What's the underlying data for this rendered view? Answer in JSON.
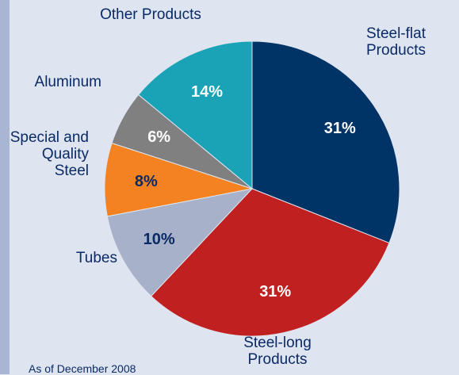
{
  "chart_data": {
    "type": "pie",
    "categories": [
      "Steel-flat Products",
      "Steel-long Products",
      "Tubes",
      "Special and Quality Steel",
      "Aluminum",
      "Other Products"
    ],
    "values": [
      31,
      31,
      10,
      8,
      6,
      14
    ],
    "value_labels": [
      "31%",
      "31%",
      "10%",
      "8%",
      "6%",
      "14%"
    ],
    "colors": [
      "#003366",
      "#c0201f",
      "#a7b1c9",
      "#f58220",
      "#808080",
      "#1aa3b6"
    ],
    "annotation": "As of December 2008"
  }
}
